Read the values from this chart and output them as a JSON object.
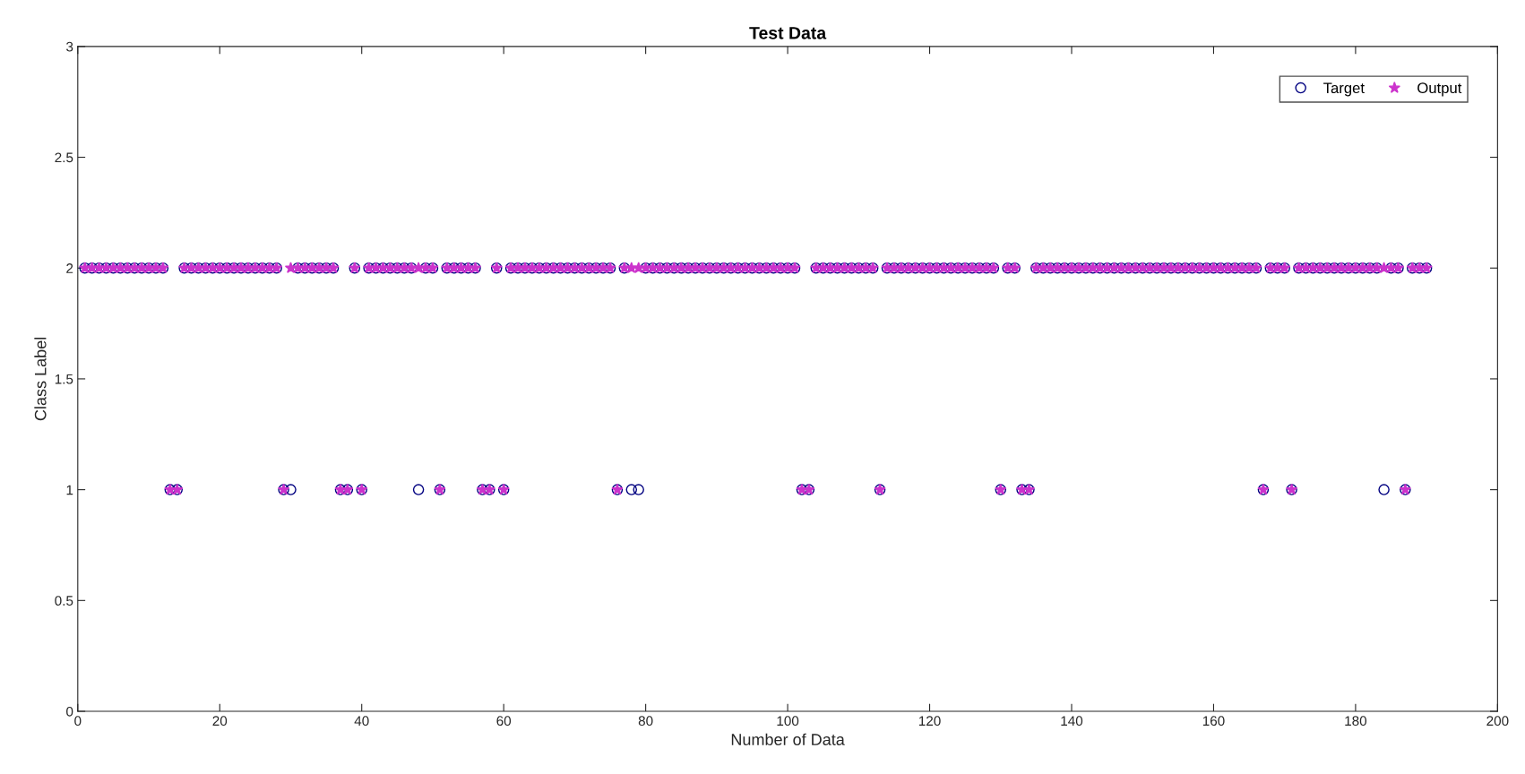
{
  "chart_data": {
    "type": "scatter",
    "title": "Test Data",
    "xlabel": "Number of Data",
    "ylabel": "Class Label",
    "xlim": [
      0,
      200
    ],
    "xticks": [
      0,
      20,
      40,
      60,
      80,
      100,
      120,
      140,
      160,
      180,
      200
    ],
    "ylim": [
      0,
      3
    ],
    "yticks": [
      0,
      0.5,
      1,
      1.5,
      2,
      2.5,
      3
    ],
    "grid": false,
    "legend": "top right",
    "x": [
      1,
      2,
      3,
      4,
      5,
      6,
      7,
      8,
      9,
      10,
      11,
      12,
      13,
      14,
      15,
      16,
      17,
      18,
      19,
      20,
      21,
      22,
      23,
      24,
      25,
      26,
      27,
      28,
      29,
      30,
      31,
      32,
      33,
      34,
      35,
      36,
      37,
      38,
      39,
      40,
      41,
      42,
      43,
      44,
      45,
      46,
      47,
      48,
      49,
      50,
      51,
      52,
      53,
      54,
      55,
      56,
      57,
      58,
      59,
      60,
      61,
      62,
      63,
      64,
      65,
      66,
      67,
      68,
      69,
      70,
      71,
      72,
      73,
      74,
      75,
      76,
      77,
      78,
      79,
      80,
      81,
      82,
      83,
      84,
      85,
      86,
      87,
      88,
      89,
      90,
      91,
      92,
      93,
      94,
      95,
      96,
      97,
      98,
      99,
      100,
      101,
      102,
      103,
      104,
      105,
      106,
      107,
      108,
      109,
      110,
      111,
      112,
      113,
      114,
      115,
      116,
      117,
      118,
      119,
      120,
      121,
      122,
      123,
      124,
      125,
      126,
      127,
      128,
      129,
      130,
      131,
      132,
      133,
      134,
      135,
      136,
      137,
      138,
      139,
      140,
      141,
      142,
      143,
      144,
      145,
      146,
      147,
      148,
      149,
      150,
      151,
      152,
      153,
      154,
      155,
      156,
      157,
      158,
      159,
      160,
      161,
      162,
      163,
      164,
      165,
      166,
      167,
      168,
      169,
      170,
      171,
      172,
      173,
      174,
      175,
      176,
      177,
      178,
      179,
      180,
      181,
      182,
      183,
      184,
      185,
      186,
      187,
      188,
      189,
      190
    ],
    "series": [
      {
        "name": "Target",
        "color": "#000080",
        "marker": "circle",
        "values": [
          2,
          2,
          2,
          2,
          2,
          2,
          2,
          2,
          2,
          2,
          2,
          2,
          1,
          1,
          2,
          2,
          2,
          2,
          2,
          2,
          2,
          2,
          2,
          2,
          2,
          2,
          2,
          2,
          1,
          1,
          2,
          2,
          2,
          2,
          2,
          2,
          1,
          1,
          2,
          1,
          2,
          2,
          2,
          2,
          2,
          2,
          2,
          1,
          2,
          2,
          1,
          2,
          2,
          2,
          2,
          2,
          1,
          1,
          2,
          1,
          2,
          2,
          2,
          2,
          2,
          2,
          2,
          2,
          2,
          2,
          2,
          2,
          2,
          2,
          2,
          1,
          2,
          1,
          1,
          2,
          2,
          2,
          2,
          2,
          2,
          2,
          2,
          2,
          2,
          2,
          2,
          2,
          2,
          2,
          2,
          2,
          2,
          2,
          2,
          2,
          2,
          1,
          1,
          2,
          2,
          2,
          2,
          2,
          2,
          2,
          2,
          2,
          1,
          2,
          2,
          2,
          2,
          2,
          2,
          2,
          2,
          2,
          2,
          2,
          2,
          2,
          2,
          2,
          2,
          1,
          2,
          2,
          1,
          1,
          2,
          2,
          2,
          2,
          2,
          2,
          2,
          2,
          2,
          2,
          2,
          2,
          2,
          2,
          2,
          2,
          2,
          2,
          2,
          2,
          2,
          2,
          2,
          2,
          2,
          2,
          2,
          2,
          2,
          2,
          2,
          2,
          1,
          2,
          2,
          2,
          1,
          2,
          2,
          2,
          2,
          2,
          2,
          2,
          2,
          2,
          2,
          2,
          2,
          1,
          2,
          2,
          1,
          2,
          2,
          2
        ]
      },
      {
        "name": "Output",
        "color": "#cc33cc",
        "marker": "star",
        "values": [
          2,
          2,
          2,
          2,
          2,
          2,
          2,
          2,
          2,
          2,
          2,
          2,
          1,
          1,
          2,
          2,
          2,
          2,
          2,
          2,
          2,
          2,
          2,
          2,
          2,
          2,
          2,
          2,
          1,
          2,
          2,
          2,
          2,
          2,
          2,
          2,
          1,
          1,
          2,
          1,
          2,
          2,
          2,
          2,
          2,
          2,
          2,
          2,
          2,
          2,
          1,
          2,
          2,
          2,
          2,
          2,
          1,
          1,
          2,
          1,
          2,
          2,
          2,
          2,
          2,
          2,
          2,
          2,
          2,
          2,
          2,
          2,
          2,
          2,
          2,
          1,
          2,
          2,
          2,
          2,
          2,
          2,
          2,
          2,
          2,
          2,
          2,
          2,
          2,
          2,
          2,
          2,
          2,
          2,
          2,
          2,
          2,
          2,
          2,
          2,
          2,
          1,
          1,
          2,
          2,
          2,
          2,
          2,
          2,
          2,
          2,
          2,
          1,
          2,
          2,
          2,
          2,
          2,
          2,
          2,
          2,
          2,
          2,
          2,
          2,
          2,
          2,
          2,
          2,
          1,
          2,
          2,
          1,
          1,
          2,
          2,
          2,
          2,
          2,
          2,
          2,
          2,
          2,
          2,
          2,
          2,
          2,
          2,
          2,
          2,
          2,
          2,
          2,
          2,
          2,
          2,
          2,
          2,
          2,
          2,
          2,
          2,
          2,
          2,
          2,
          2,
          1,
          2,
          2,
          2,
          1,
          2,
          2,
          2,
          2,
          2,
          2,
          2,
          2,
          2,
          2,
          2,
          2,
          2,
          2,
          2,
          1,
          2,
          2,
          2
        ]
      }
    ]
  }
}
